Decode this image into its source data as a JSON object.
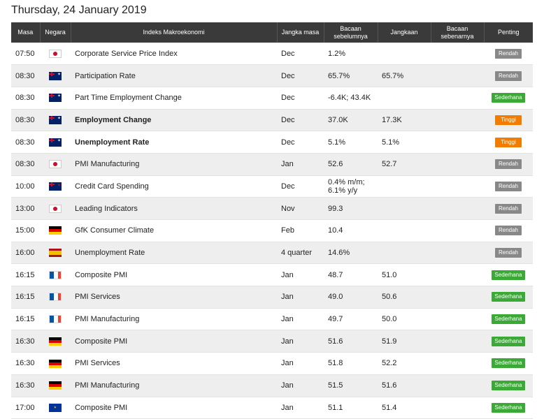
{
  "page_title": "Thursday, 24 January 2019",
  "columns": {
    "time": "Masa",
    "country": "Negara",
    "index": "Indeks Makroekonomi",
    "period": "Jangka masa",
    "previous": "Bacaan sebelumnya",
    "forecast": "Jangkaan",
    "actual": "Bacaan sebenarnya",
    "importance": "Penting"
  },
  "colors": {
    "header_bg": "#3a3a3a",
    "low": "#888888",
    "medium": "#3aa935",
    "high": "#f07d00"
  },
  "rows": [
    {
      "time": "07:50",
      "flag": "jp",
      "index": "Corporate Service Price Index",
      "period": "Dec",
      "previous": "1.2%",
      "forecast": "",
      "actual": "",
      "importance": "Rendah",
      "level": "low",
      "bold": false
    },
    {
      "time": "08:30",
      "flag": "au",
      "index": "Participation Rate",
      "period": "Dec",
      "previous": "65.7%",
      "forecast": "65.7%",
      "actual": "",
      "importance": "Rendah",
      "level": "low",
      "bold": false
    },
    {
      "time": "08:30",
      "flag": "au",
      "index": "Part Time Employment Change",
      "period": "Dec",
      "previous": "-6.4K; 43.4K",
      "forecast": "",
      "actual": "",
      "importance": "Sederhana",
      "level": "mid",
      "bold": false
    },
    {
      "time": "08:30",
      "flag": "au",
      "index": "Employment Change",
      "period": "Dec",
      "previous": "37.0K",
      "forecast": "17.3K",
      "actual": "",
      "importance": "Tinggi",
      "level": "high",
      "bold": true
    },
    {
      "time": "08:30",
      "flag": "au",
      "index": "Unemployment Rate",
      "period": "Dec",
      "previous": "5.1%",
      "forecast": "5.1%",
      "actual": "",
      "importance": "Tinggi",
      "level": "high",
      "bold": true
    },
    {
      "time": "08:30",
      "flag": "jp",
      "index": "PMI Manufacturing",
      "period": "Jan",
      "previous": "52.6",
      "forecast": "52.7",
      "actual": "",
      "importance": "Rendah",
      "level": "low",
      "bold": false
    },
    {
      "time": "10:00",
      "flag": "nz",
      "index": "Credit Card Spending",
      "period": "Dec",
      "previous": "0.4% m/m;\n6.1% y/y",
      "forecast": "",
      "actual": "",
      "importance": "Rendah",
      "level": "low",
      "bold": false
    },
    {
      "time": "13:00",
      "flag": "jp",
      "index": "Leading Indicators",
      "period": "Nov",
      "previous": "99.3",
      "forecast": "",
      "actual": "",
      "importance": "Rendah",
      "level": "low",
      "bold": false
    },
    {
      "time": "15:00",
      "flag": "de",
      "index": "GfK Consumer Climate",
      "period": "Feb",
      "previous": "10.4",
      "forecast": "",
      "actual": "",
      "importance": "Rendah",
      "level": "low",
      "bold": false
    },
    {
      "time": "16:00",
      "flag": "es",
      "index": "Unemployment Rate",
      "period": "4 quarter",
      "previous": "14.6%",
      "forecast": "",
      "actual": "",
      "importance": "Rendah",
      "level": "low",
      "bold": false
    },
    {
      "time": "16:15",
      "flag": "fr",
      "index": "Composite PMI",
      "period": "Jan",
      "previous": "48.7",
      "forecast": "51.0",
      "actual": "",
      "importance": "Sederhana",
      "level": "mid",
      "bold": false
    },
    {
      "time": "16:15",
      "flag": "fr",
      "index": "PMI Services",
      "period": "Jan",
      "previous": "49.0",
      "forecast": "50.6",
      "actual": "",
      "importance": "Sederhana",
      "level": "mid",
      "bold": false
    },
    {
      "time": "16:15",
      "flag": "fr",
      "index": "PMI Manufacturing",
      "period": "Jan",
      "previous": "49.7",
      "forecast": "50.0",
      "actual": "",
      "importance": "Sederhana",
      "level": "mid",
      "bold": false
    },
    {
      "time": "16:30",
      "flag": "de",
      "index": "Composite PMI",
      "period": "Jan",
      "previous": "51.6",
      "forecast": "51.9",
      "actual": "",
      "importance": "Sederhana",
      "level": "mid",
      "bold": false
    },
    {
      "time": "16:30",
      "flag": "de",
      "index": "PMI Services",
      "period": "Jan",
      "previous": "51.8",
      "forecast": "52.2",
      "actual": "",
      "importance": "Sederhana",
      "level": "mid",
      "bold": false
    },
    {
      "time": "16:30",
      "flag": "de",
      "index": "PMI Manufacturing",
      "period": "Jan",
      "previous": "51.5",
      "forecast": "51.6",
      "actual": "",
      "importance": "Sederhana",
      "level": "mid",
      "bold": false
    },
    {
      "time": "17:00",
      "flag": "eu",
      "index": "Composite PMI",
      "period": "Jan",
      "previous": "51.1",
      "forecast": "51.4",
      "actual": "",
      "importance": "Sederhana",
      "level": "mid",
      "bold": false
    }
  ]
}
